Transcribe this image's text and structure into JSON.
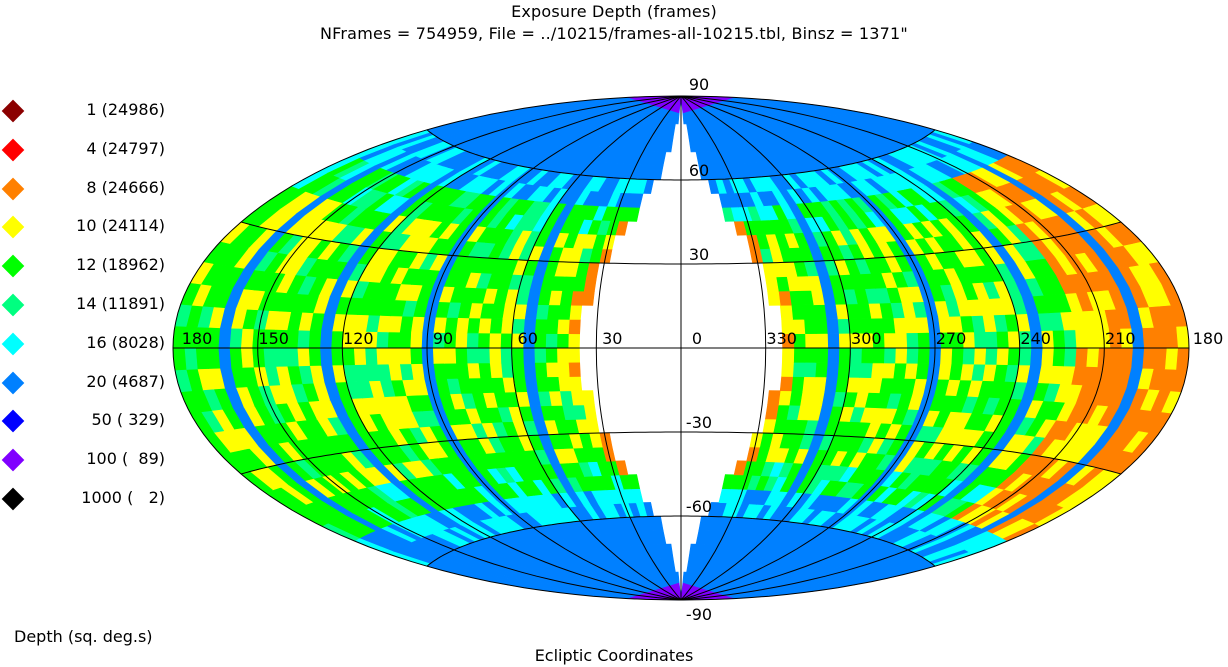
{
  "title": "Exposure Depth (frames)",
  "subtitle": "NFrames = 754959, File = ../10215/frames-all-10215.tbl, Binsz = 1371\"",
  "legend_title": "Depth (sq. deg.s)",
  "xlabel": "Ecliptic Coordinates",
  "chart_data": {
    "type": "heatmap",
    "projection": "aitoff",
    "coordinate_system": "ecliptic",
    "title": "Exposure Depth (frames)",
    "subtitle": "NFrames = 754959, File = ../10215/frames-all-10215.tbl, Binsz = 1371\"",
    "xlabel": "Ecliptic Coordinates",
    "legend_title": "Depth (sq. deg.s)",
    "legend_placement": "left",
    "grid": true,
    "longitude_ticks": [
      "180",
      "150",
      "120",
      "90",
      "60",
      "30",
      "0",
      "330",
      "300",
      "270",
      "240",
      "210",
      "180"
    ],
    "latitude_ticks": [
      "90",
      "60",
      "30",
      "-30",
      "-60",
      "-90"
    ],
    "lon_range": [
      180,
      -180
    ],
    "lat_range": [
      -90,
      90
    ],
    "levels": [
      {
        "depth": 1,
        "count": 24986,
        "color": "#8b0000",
        "label": "   1 (24986)"
      },
      {
        "depth": 4,
        "count": 24797,
        "color": "#ff0000",
        "label": "   4 (24797)"
      },
      {
        "depth": 8,
        "count": 24666,
        "color": "#ff8000",
        "label": "   8 (24666)"
      },
      {
        "depth": 10,
        "count": 24114,
        "color": "#ffff00",
        "label": "  10 (24114)"
      },
      {
        "depth": 12,
        "count": 18962,
        "color": "#00ff00",
        "label": "  12 (18962)"
      },
      {
        "depth": 14,
        "count": 11891,
        "color": "#00ff80",
        "label": "  14 (11891)"
      },
      {
        "depth": 16,
        "count": 8028,
        "color": "#00ffff",
        "label": "  16 (8028)"
      },
      {
        "depth": 20,
        "count": 4687,
        "color": "#0080ff",
        "label": "  20 (4687)"
      },
      {
        "depth": 50,
        "count": 329,
        "color": "#0000ff",
        "label": "  50 ( 329)"
      },
      {
        "depth": 100,
        "count": 89,
        "color": "#8000ff",
        "label": " 100 (  89)"
      },
      {
        "depth": 1000,
        "count": 2,
        "color": "#000000",
        "label": "1000 (   2)"
      }
    ]
  }
}
